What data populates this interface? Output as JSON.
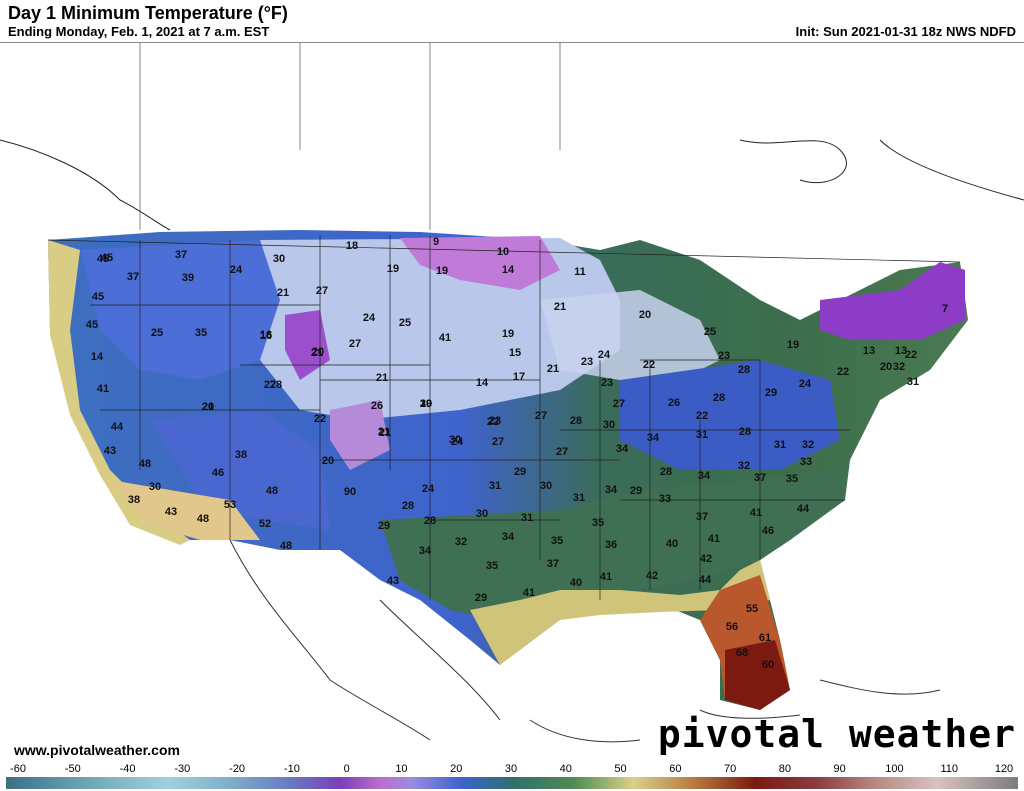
{
  "header": {
    "title": "Day 1 Minimum Temperature (°F)",
    "subtitle": "Ending Monday, Feb. 1, 2021 at 7 a.m. EST",
    "init": "Init: Sun 2021-01-31 18z NWS NDFD"
  },
  "footer": {
    "site": "www.pivotalweather.com",
    "brand": "pivotal weather"
  },
  "colorbar": {
    "ticks": [
      "-60",
      "-50",
      "-40",
      "-30",
      "-20",
      "-10",
      "0",
      "10",
      "20",
      "30",
      "40",
      "50",
      "60",
      "70",
      "80",
      "90",
      "100",
      "110",
      "120"
    ]
  },
  "map_values": [
    "45",
    "37",
    "37",
    "39",
    "24",
    "30",
    "18",
    "9",
    "10",
    "19",
    "45",
    "45",
    "25",
    "35",
    "16",
    "21",
    "27",
    "19",
    "14",
    "11",
    "14",
    "21",
    "41",
    "27",
    "24",
    "25",
    "19",
    "15",
    "21",
    "20",
    "25",
    "23",
    "19",
    "13",
    "7",
    "41",
    "20",
    "20",
    "27",
    "16",
    "21",
    "19",
    "26",
    "30",
    "21",
    "23",
    "24",
    "22",
    "13",
    "22",
    "28",
    "28",
    "44",
    "21",
    "14",
    "17",
    "21",
    "23",
    "24",
    "20",
    "29",
    "23",
    "43",
    "22",
    "26",
    "27",
    "28",
    "27",
    "28",
    "30",
    "31",
    "48",
    "46",
    "38",
    "21",
    "24",
    "22",
    "27",
    "27",
    "30",
    "28",
    "30",
    "48",
    "20",
    "22",
    "28",
    "32",
    "34",
    "34",
    "31",
    "32",
    "31",
    "33",
    "38",
    "43",
    "53",
    "90",
    "24",
    "31",
    "29",
    "30",
    "29",
    "33",
    "34",
    "37",
    "35",
    "48",
    "28",
    "28",
    "30",
    "31",
    "34",
    "35",
    "37",
    "41",
    "44",
    "52",
    "29",
    "32",
    "34",
    "35",
    "36",
    "40",
    "41",
    "46",
    "48",
    "34",
    "35",
    "37",
    "40",
    "41",
    "42",
    "43",
    "29",
    "41",
    "42",
    "44",
    "55",
    "45",
    "56",
    "61",
    "68",
    "60",
    "20",
    "22",
    "31",
    "32"
  ],
  "colors": {
    "cold_extreme": "#8b33c7",
    "cold": "#b46cd8",
    "cool_blue": "#3f63cc",
    "mild_green": "#3c6e4d",
    "warm_yellow": "#e4d68a",
    "hot": "#7a1a10"
  }
}
